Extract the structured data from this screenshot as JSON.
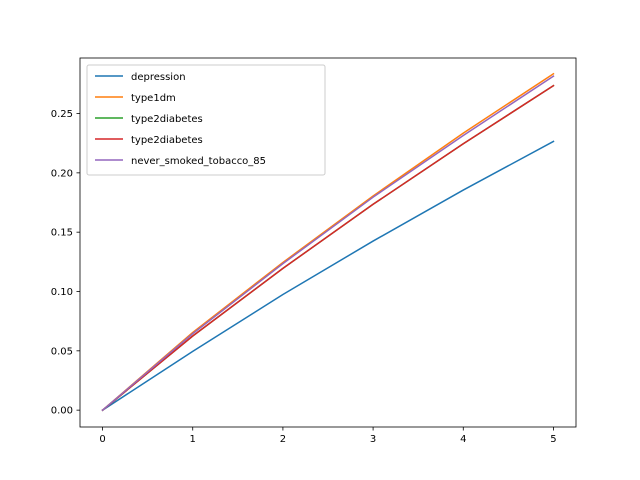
{
  "chart_data": {
    "type": "line",
    "title": "",
    "xlabel": "",
    "ylabel": "",
    "xlim": [
      -0.25,
      5.25
    ],
    "ylim": [
      -0.0142,
      0.2968
    ],
    "xticks": [
      0,
      1,
      2,
      3,
      4,
      5
    ],
    "xtick_labels": [
      "0",
      "1",
      "2",
      "3",
      "4",
      "5"
    ],
    "yticks": [
      0.0,
      0.05,
      0.1,
      0.15,
      0.2,
      0.25
    ],
    "ytick_labels": [
      "0.00",
      "0.05",
      "0.10",
      "0.15",
      "0.20",
      "0.25"
    ],
    "grid": false,
    "legend_position": "upper-left",
    "x": [
      0,
      1,
      2,
      3,
      4,
      5
    ],
    "series": [
      {
        "name": "depression",
        "color": "#1f77b4",
        "values": [
          0.0,
          0.0495,
          0.0975,
          0.1425,
          0.1855,
          0.2265
        ]
      },
      {
        "name": "type1dm",
        "color": "#ff7f0e",
        "values": [
          0.0,
          0.0655,
          0.1245,
          0.1805,
          0.2335,
          0.2835
        ]
      },
      {
        "name": "type2diabetes",
        "color": "#2ca02c",
        "values": [
          0.0,
          0.0625,
          0.1195,
          0.1735,
          0.2245,
          0.2735
        ]
      },
      {
        "name": "type2diabetes",
        "color": "#d62728",
        "values": [
          0.0,
          0.0625,
          0.1195,
          0.1735,
          0.2245,
          0.2735
        ]
      },
      {
        "name": "never_smoked_tobacco_85",
        "color": "#9467bd",
        "values": [
          0.0,
          0.0645,
          0.1235,
          0.1795,
          0.2315,
          0.2815
        ]
      }
    ]
  }
}
